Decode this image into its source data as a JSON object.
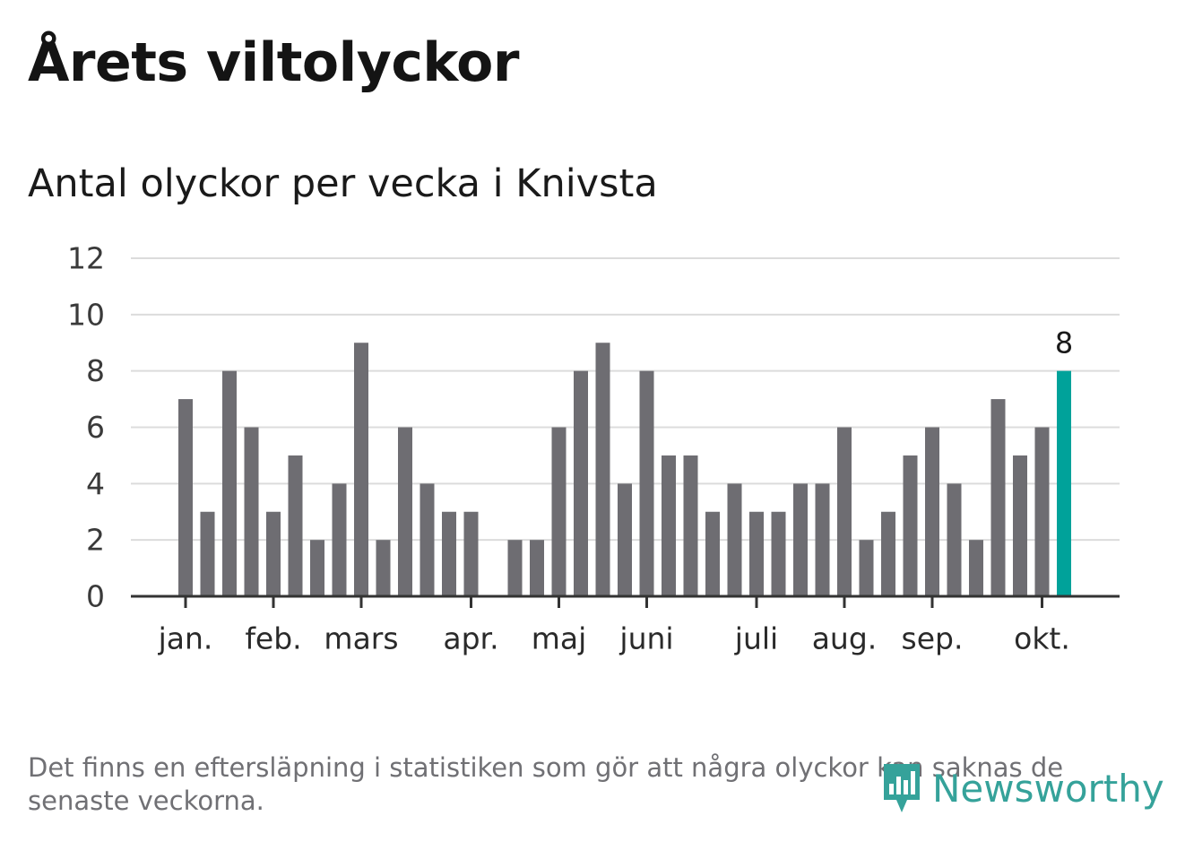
{
  "title": "Årets viltolyckor",
  "subtitle": "Antal olyckor per vecka i Knivsta",
  "footnote": "Det finns en eftersläpning i statistiken som gör att några olyckor kan saknas de senaste veckorna.",
  "logo": {
    "text": "Newsworthy",
    "icon": "bar-chart-speech-bubble-icon",
    "color": "#35a29a"
  },
  "chart_data": {
    "type": "bar",
    "title": "Årets viltolyckor",
    "subtitle": "Antal olyckor per vecka i Knivsta",
    "xlabel": "",
    "ylabel": "",
    "ylim": [
      0,
      12
    ],
    "yticks": [
      0,
      2,
      4,
      6,
      8,
      10,
      12
    ],
    "grid": true,
    "bar_color": "#6e6d72",
    "highlight_color": "#00a29a",
    "highlight_index": 40,
    "highlight_label": "8",
    "weeks": [
      1,
      2,
      3,
      4,
      5,
      6,
      7,
      8,
      9,
      10,
      11,
      12,
      13,
      14,
      15,
      16,
      17,
      18,
      19,
      20,
      21,
      22,
      23,
      24,
      25,
      26,
      27,
      28,
      29,
      30,
      31,
      32,
      33,
      34,
      35,
      36,
      37,
      38,
      39,
      40,
      41
    ],
    "values": [
      7,
      3,
      8,
      6,
      3,
      5,
      2,
      4,
      9,
      2,
      6,
      4,
      3,
      3,
      0,
      2,
      2,
      6,
      8,
      9,
      4,
      8,
      5,
      5,
      3,
      4,
      3,
      3,
      4,
      4,
      6,
      2,
      3,
      5,
      6,
      4,
      2,
      7,
      5,
      6,
      8
    ],
    "month_ticks": [
      {
        "label": "jan.",
        "week": 1
      },
      {
        "label": "feb.",
        "week": 5
      },
      {
        "label": "mars",
        "week": 9
      },
      {
        "label": "apr.",
        "week": 14
      },
      {
        "label": "maj",
        "week": 18
      },
      {
        "label": "juni",
        "week": 22
      },
      {
        "label": "juli",
        "week": 27
      },
      {
        "label": "aug.",
        "week": 31
      },
      {
        "label": "sep.",
        "week": 35
      },
      {
        "label": "okt.",
        "week": 40
      }
    ]
  }
}
